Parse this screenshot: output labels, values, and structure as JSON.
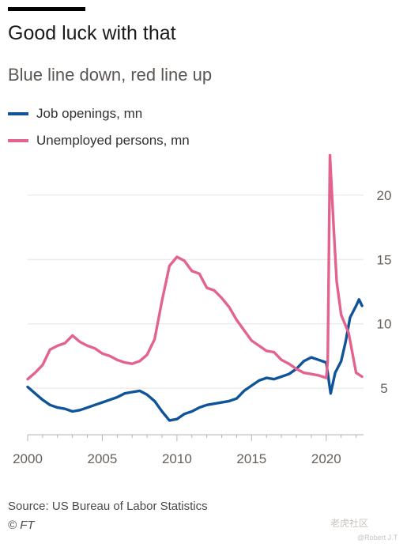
{
  "title": "Good luck with that",
  "subtitle": "Blue line down, red line up",
  "source": "Source: US Bureau of Labor Statistics",
  "credit": "© FT",
  "watermark": "老虎社区",
  "watermark_sub": "@Robert J.T",
  "colors": {
    "job_openings": "#0f5499",
    "unemployed": "#e4628e",
    "grid": "#e6e2de",
    "axis": "#b8b2ad",
    "top_rule": "#000000"
  },
  "chart_data": {
    "type": "line",
    "title": "Good luck with that",
    "subtitle": "Blue line down, red line up",
    "xlabel": "",
    "ylabel": "",
    "xlim": [
      2000,
      2022.5
    ],
    "ylim": [
      2,
      23
    ],
    "xticks": [
      2000,
      2005,
      2010,
      2015,
      2020
    ],
    "yticks": [
      5,
      10,
      15,
      20
    ],
    "grid": true,
    "y_axis_side": "right",
    "legend_position": "top-left",
    "series": [
      {
        "name": "Job openings, mn",
        "color": "#0f5499",
        "points": [
          [
            2000.0,
            5.1
          ],
          [
            2000.5,
            4.6
          ],
          [
            2001.0,
            4.1
          ],
          [
            2001.5,
            3.7
          ],
          [
            2002.0,
            3.5
          ],
          [
            2002.5,
            3.4
          ],
          [
            2003.0,
            3.2
          ],
          [
            2003.5,
            3.3
          ],
          [
            2004.0,
            3.5
          ],
          [
            2004.5,
            3.7
          ],
          [
            2005.0,
            3.9
          ],
          [
            2005.5,
            4.1
          ],
          [
            2006.0,
            4.3
          ],
          [
            2006.5,
            4.6
          ],
          [
            2007.0,
            4.7
          ],
          [
            2007.5,
            4.8
          ],
          [
            2008.0,
            4.5
          ],
          [
            2008.5,
            4.0
          ],
          [
            2009.0,
            3.2
          ],
          [
            2009.5,
            2.5
          ],
          [
            2010.0,
            2.6
          ],
          [
            2010.5,
            3.0
          ],
          [
            2011.0,
            3.2
          ],
          [
            2011.5,
            3.5
          ],
          [
            2012.0,
            3.7
          ],
          [
            2012.5,
            3.8
          ],
          [
            2013.0,
            3.9
          ],
          [
            2013.5,
            4.0
          ],
          [
            2014.0,
            4.2
          ],
          [
            2014.5,
            4.8
          ],
          [
            2015.0,
            5.2
          ],
          [
            2015.5,
            5.6
          ],
          [
            2016.0,
            5.8
          ],
          [
            2016.5,
            5.7
          ],
          [
            2017.0,
            5.9
          ],
          [
            2017.5,
            6.1
          ],
          [
            2018.0,
            6.5
          ],
          [
            2018.5,
            7.1
          ],
          [
            2019.0,
            7.4
          ],
          [
            2019.5,
            7.2
          ],
          [
            2020.0,
            7.0
          ],
          [
            2020.3,
            4.6
          ],
          [
            2020.6,
            6.2
          ],
          [
            2021.0,
            7.1
          ],
          [
            2021.3,
            8.6
          ],
          [
            2021.6,
            10.5
          ],
          [
            2022.0,
            11.4
          ],
          [
            2022.2,
            11.9
          ],
          [
            2022.4,
            11.4
          ]
        ]
      },
      {
        "name": "Unemployed persons, mn",
        "color": "#e4628e",
        "points": [
          [
            2000.0,
            5.7
          ],
          [
            2000.5,
            6.2
          ],
          [
            2001.0,
            6.8
          ],
          [
            2001.5,
            8.0
          ],
          [
            2002.0,
            8.3
          ],
          [
            2002.5,
            8.5
          ],
          [
            2003.0,
            9.1
          ],
          [
            2003.5,
            8.6
          ],
          [
            2004.0,
            8.3
          ],
          [
            2004.5,
            8.1
          ],
          [
            2005.0,
            7.7
          ],
          [
            2005.5,
            7.5
          ],
          [
            2006.0,
            7.2
          ],
          [
            2006.5,
            7.0
          ],
          [
            2007.0,
            6.9
          ],
          [
            2007.5,
            7.1
          ],
          [
            2008.0,
            7.6
          ],
          [
            2008.5,
            8.8
          ],
          [
            2009.0,
            11.8
          ],
          [
            2009.5,
            14.5
          ],
          [
            2010.0,
            15.2
          ],
          [
            2010.5,
            14.9
          ],
          [
            2011.0,
            14.1
          ],
          [
            2011.5,
            13.9
          ],
          [
            2012.0,
            12.8
          ],
          [
            2012.5,
            12.6
          ],
          [
            2013.0,
            12.0
          ],
          [
            2013.5,
            11.3
          ],
          [
            2014.0,
            10.3
          ],
          [
            2014.5,
            9.5
          ],
          [
            2015.0,
            8.7
          ],
          [
            2015.5,
            8.3
          ],
          [
            2016.0,
            7.9
          ],
          [
            2016.5,
            7.8
          ],
          [
            2017.0,
            7.2
          ],
          [
            2017.5,
            6.9
          ],
          [
            2018.0,
            6.5
          ],
          [
            2018.5,
            6.2
          ],
          [
            2019.0,
            6.1
          ],
          [
            2019.5,
            6.0
          ],
          [
            2020.0,
            5.8
          ],
          [
            2020.1,
            7.1
          ],
          [
            2020.25,
            23.1
          ],
          [
            2020.5,
            17.5
          ],
          [
            2020.7,
            13.3
          ],
          [
            2021.0,
            10.7
          ],
          [
            2021.5,
            9.3
          ],
          [
            2022.0,
            6.2
          ],
          [
            2022.4,
            5.9
          ]
        ]
      }
    ]
  }
}
